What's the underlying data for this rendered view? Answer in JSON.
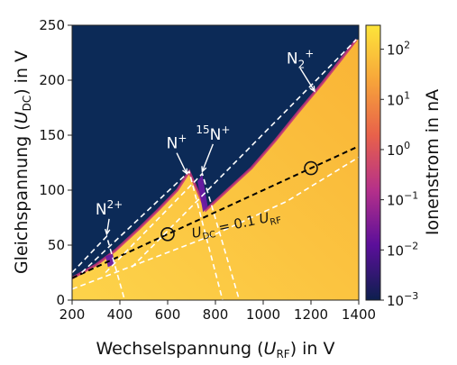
{
  "chart_data": {
    "type": "heatmap",
    "title": "",
    "xlabel": {
      "prefix": "Wechselspannung (",
      "symbol": "U",
      "sub": "RF",
      "suffix": ") in V"
    },
    "ylabel": {
      "prefix": "Gleichspannung (",
      "symbol": "U",
      "sub": "DC",
      "suffix": ") in V"
    },
    "xlim": [
      200,
      1400
    ],
    "ylim": [
      0,
      250
    ],
    "x_ticks": [
      200,
      400,
      600,
      800,
      1000,
      1200,
      1400
    ],
    "y_ticks": [
      0,
      50,
      100,
      150,
      200,
      250
    ],
    "colorbar": {
      "label": "Ionenstrom in nA",
      "scale": "log",
      "range": [
        0.001,
        300
      ],
      "ticks": [
        {
          "value": 100,
          "base": "10",
          "exp": "2"
        },
        {
          "value": 10,
          "base": "10",
          "exp": "1"
        },
        {
          "value": 1,
          "base": "10",
          "exp": "0"
        },
        {
          "value": 0.1,
          "base": "10",
          "exp": "−1"
        },
        {
          "value": 0.01,
          "base": "10",
          "exp": "−2"
        },
        {
          "value": 0.001,
          "base": "10",
          "exp": "−3"
        }
      ],
      "colormap": [
        "#0d1f4e",
        "#5b0f9a",
        "#b5308a",
        "#e8614a",
        "#f7a53a",
        "#fde53a"
      ]
    },
    "background_color": "#0c2a57",
    "stability_region": {
      "upper_boundary": [
        [
          200,
          20
        ],
        [
          300,
          32
        ],
        [
          380,
          45
        ],
        [
          480,
          65
        ],
        [
          560,
          82
        ],
        [
          640,
          100
        ],
        [
          690,
          117
        ],
        [
          720,
          102
        ],
        [
          760,
          82
        ],
        [
          850,
          100
        ],
        [
          950,
          120
        ],
        [
          1050,
          145
        ],
        [
          1150,
          172
        ],
        [
          1250,
          198
        ],
        [
          1330,
          220
        ],
        [
          1390,
          237
        ]
      ],
      "fill_color": "#fbbf3c"
    },
    "purple_bands": [
      {
        "label": "15N+",
        "points": [
          [
            725,
            108
          ],
          [
            745,
            114
          ],
          [
            768,
            85
          ],
          [
            748,
            80
          ]
        ]
      },
      {
        "label": "N2+",
        "points": [
          [
            340,
            40
          ],
          [
            370,
            42
          ],
          [
            380,
            33
          ],
          [
            350,
            30
          ]
        ]
      }
    ],
    "dashed_lines": [
      {
        "name": "scan-line",
        "color": "#000000",
        "points": [
          [
            200,
            20
          ],
          [
            1400,
            140
          ]
        ]
      },
      {
        "name": "white-left-N2plus",
        "color": "#ffffff",
        "points": [
          [
            200,
            25
          ],
          [
            345,
            58
          ],
          [
            420,
            0
          ]
        ]
      },
      {
        "name": "white-N-plus",
        "color": "#ffffff",
        "points": [
          [
            240,
            25
          ],
          [
            690,
            117
          ],
          [
            830,
            0
          ]
        ]
      },
      {
        "name": "white-15N-plus",
        "color": "#ffffff",
        "points": [
          [
            340,
            25
          ],
          [
            745,
            115
          ],
          [
            900,
            0
          ]
        ]
      },
      {
        "name": "white-N2-plus",
        "color": "#ffffff",
        "points": [
          [
            450,
            30
          ],
          [
            1390,
            237
          ]
        ]
      },
      {
        "name": "white-lower-curve",
        "color": "#ffffff",
        "points": [
          [
            200,
            10
          ],
          [
            500,
            35
          ],
          [
            800,
            60
          ],
          [
            1100,
            90
          ],
          [
            1400,
            130
          ]
        ]
      }
    ],
    "markers": [
      {
        "name": "circle-600",
        "x": 600,
        "y": 60
      },
      {
        "name": "circle-1200",
        "x": 1200,
        "y": 120
      }
    ],
    "annotations": [
      {
        "name": "N2plus-label",
        "text": "N",
        "sup": "2+",
        "x": 355,
        "y": 78,
        "arrow_to": [
          345,
          60
        ]
      },
      {
        "name": "Nplus-label",
        "text": "N",
        "sup": "+",
        "x": 638,
        "y": 138,
        "arrow_to": [
          680,
          115
        ]
      },
      {
        "name": "15Nplus-label",
        "pre_sup": "15",
        "text": "N",
        "sup": "+",
        "x": 790,
        "y": 146,
        "arrow_to": [
          745,
          117
        ]
      },
      {
        "name": "N2-plus-label",
        "text": "N",
        "sub": "2",
        "sup": "+",
        "x": 1155,
        "y": 215,
        "arrow_to": [
          1215,
          190
        ]
      }
    ],
    "line_label": {
      "text_parts": [
        "U",
        "DC",
        " = 0.1 ",
        "U",
        "RF"
      ],
      "x": 890,
      "y": 65
    }
  }
}
